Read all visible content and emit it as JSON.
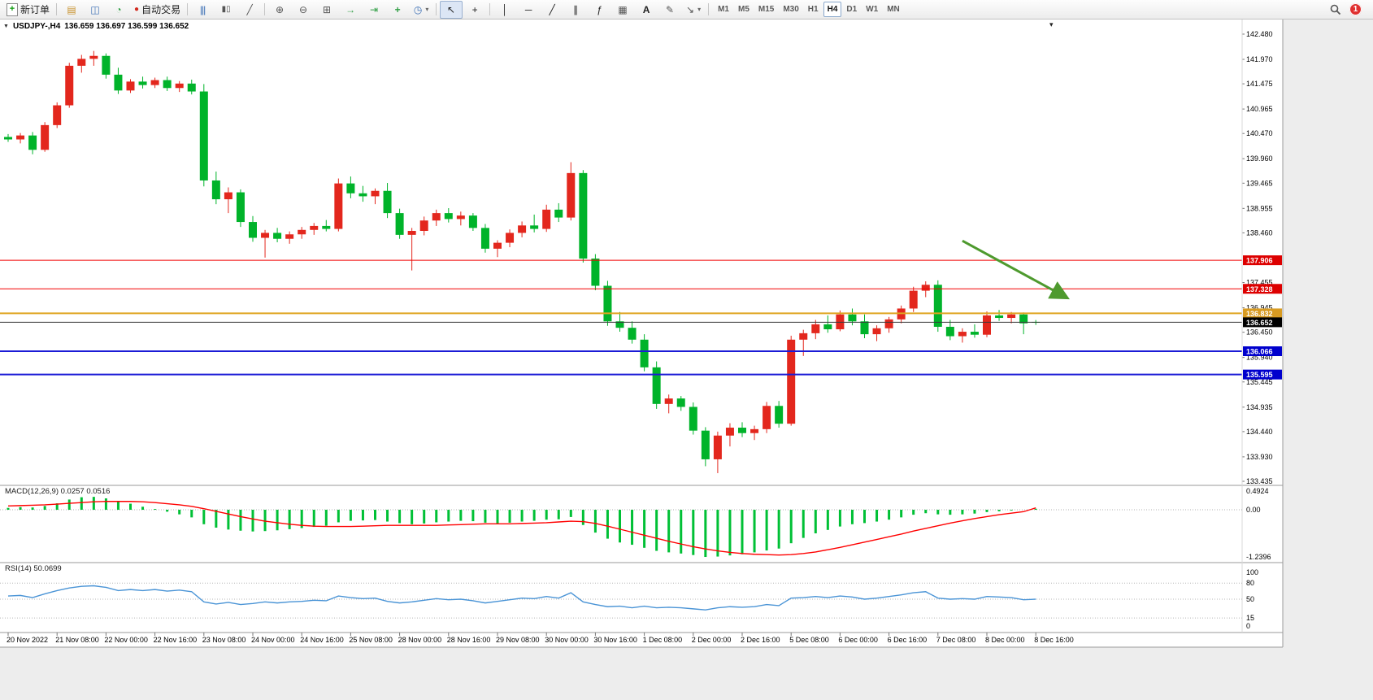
{
  "toolbar": {
    "new_order_label": "新订单",
    "autotrading_label": "自动交易",
    "timeframes": [
      "M1",
      "M5",
      "M15",
      "M30",
      "H1",
      "H4",
      "D1",
      "W1",
      "MN"
    ],
    "active_timeframe": "H4",
    "notification_count": "1"
  },
  "icons": {
    "quote_dropdown": "▼",
    "shift_marker": "▾",
    "new_order_plus": "+",
    "market_watch": "▤",
    "navigator": "◫",
    "toolbox": "◔",
    "autotrading_dot": "●",
    "bars_chart": "|||",
    "candles_chart": "▮▯",
    "line_chart": "╱",
    "zoom_in": "⊕",
    "zoom_out": "⊖",
    "tile_windows": "⊞",
    "auto_scroll": "→",
    "chart_shift": "⇥",
    "add_indicator": "+",
    "cycles": "◷",
    "dropdown": "▾",
    "cursor": "↖",
    "crosshair": "+",
    "vline": "│",
    "hline": "─",
    "trendline": "╱",
    "channel": "∥",
    "fibonacci": "ƒ",
    "shapes": "▦",
    "text_tool": "A",
    "label_tool": "✎",
    "arrows_tool": "↘"
  },
  "quote": {
    "symbol": "USDJPY-,H4",
    "ohlc": "136.659 136.697 136.599 136.652"
  },
  "panes": {
    "macd_label": "MACD(12,26,9) 0.0257 0.0516",
    "rsi_label": "RSI(14) 50.0699"
  },
  "colors": {
    "up": "#e3271d",
    "down": "#00b32a",
    "macd_hist": "#00c035",
    "macd_signal": "#ff0000",
    "rsi_line": "#4a94d6",
    "arrow": "#4e9a2e"
  },
  "chart_data": {
    "type": "candlestick",
    "title": "USDJPY-,H4",
    "timeframe": "H4",
    "ohlc_display": {
      "open": "136.659",
      "high": "136.697",
      "low": "136.599",
      "close": "136.652"
    },
    "time_labels": [
      "20 Nov 2022",
      "21 Nov 08:00",
      "22 Nov 00:00",
      "22 Nov 16:00",
      "23 Nov 08:00",
      "24 Nov 00:00",
      "24 Nov 16:00",
      "25 Nov 08:00",
      "28 Nov 00:00",
      "28 Nov 16:00",
      "29 Nov 08:00",
      "30 Nov 00:00",
      "30 Nov 16:00",
      "1 Dec 08:00",
      "2 Dec 00:00",
      "2 Dec 16:00",
      "5 Dec 08:00",
      "6 Dec 00:00",
      "6 Dec 16:00",
      "7 Dec 08:00",
      "8 Dec 00:00",
      "8 Dec 16:00"
    ],
    "main": {
      "ylim": [
        133.435,
        142.677
      ],
      "price_ticks": [
        "142.480",
        "141.970",
        "141.475",
        "140.965",
        "140.470",
        "139.960",
        "139.465",
        "138.955",
        "138.460",
        "137.455",
        "136.945",
        "136.450",
        "135.940",
        "135.445",
        "134.935",
        "134.440",
        "133.930",
        "133.435"
      ],
      "hlines": [
        {
          "price": 137.906,
          "label": "137.906",
          "line_color": "#f20000",
          "line_width": 1,
          "tag_color": "#dd0000"
        },
        {
          "price": 137.328,
          "label": "137.328",
          "line_color": "#f20000",
          "line_width": 1,
          "tag_color": "#dd0000"
        },
        {
          "price": 136.832,
          "label": "136.832",
          "line_color": "#dfa520",
          "line_width": 2,
          "tag_color": "#d89b22"
        },
        {
          "price": 136.652,
          "label": "136.652",
          "line_color": "#3a3a3a",
          "line_width": 1,
          "tag_color": "#000000"
        },
        {
          "price": 136.066,
          "label": "136.066",
          "line_color": "#1b1bd6",
          "line_width": 2,
          "tag_color": "#0000cd"
        },
        {
          "price": 135.595,
          "label": "135.595",
          "line_color": "#1b1bd6",
          "line_width": 2,
          "tag_color": "#0000cd"
        }
      ],
      "arrow": {
        "from": [
          78,
          138.3
        ],
        "to": [
          86.6,
          137.14
        ]
      },
      "candles": [
        [
          140.4,
          140.46,
          140.3,
          140.35
        ],
        [
          140.35,
          140.48,
          140.27,
          140.43
        ],
        [
          140.43,
          140.5,
          140.05,
          140.14
        ],
        [
          140.14,
          140.7,
          140.1,
          140.64
        ],
        [
          140.64,
          141.1,
          140.58,
          141.04
        ],
        [
          141.04,
          141.9,
          140.99,
          141.84
        ],
        [
          141.84,
          142.06,
          141.7,
          141.98
        ],
        [
          141.98,
          142.14,
          141.84,
          142.04
        ],
        [
          142.04,
          142.09,
          141.58,
          141.66
        ],
        [
          141.66,
          141.8,
          141.27,
          141.34
        ],
        [
          141.34,
          141.57,
          141.29,
          141.52
        ],
        [
          141.52,
          141.62,
          141.38,
          141.45
        ],
        [
          141.45,
          141.6,
          141.39,
          141.55
        ],
        [
          141.55,
          141.62,
          141.33,
          141.39
        ],
        [
          141.39,
          141.53,
          141.31,
          141.48
        ],
        [
          141.48,
          141.56,
          141.26,
          141.32
        ],
        [
          141.32,
          141.47,
          139.4,
          139.52
        ],
        [
          139.52,
          139.7,
          139.04,
          139.14
        ],
        [
          139.14,
          139.38,
          138.86,
          139.28
        ],
        [
          139.28,
          139.34,
          138.58,
          138.68
        ],
        [
          138.68,
          138.8,
          138.28,
          138.36
        ],
        [
          138.36,
          138.52,
          137.96,
          138.46
        ],
        [
          138.46,
          138.56,
          138.27,
          138.34
        ],
        [
          138.34,
          138.49,
          138.24,
          138.43
        ],
        [
          138.43,
          138.58,
          138.34,
          138.52
        ],
        [
          138.52,
          138.66,
          138.42,
          138.6
        ],
        [
          138.6,
          138.72,
          138.49,
          138.54
        ],
        [
          138.54,
          139.56,
          138.49,
          139.46
        ],
        [
          139.46,
          139.6,
          139.16,
          139.26
        ],
        [
          139.26,
          139.41,
          139.09,
          139.2
        ],
        [
          139.2,
          139.36,
          139.04,
          139.31
        ],
        [
          139.31,
          139.47,
          138.76,
          138.86
        ],
        [
          138.86,
          138.95,
          138.34,
          138.42
        ],
        [
          138.42,
          138.56,
          137.7,
          138.5
        ],
        [
          138.5,
          138.79,
          138.41,
          138.71
        ],
        [
          138.71,
          138.93,
          138.6,
          138.86
        ],
        [
          138.86,
          138.96,
          138.67,
          138.74
        ],
        [
          138.74,
          138.89,
          138.61,
          138.81
        ],
        [
          138.81,
          138.86,
          138.5,
          138.56
        ],
        [
          138.56,
          138.64,
          138.06,
          138.14
        ],
        [
          138.14,
          138.31,
          137.97,
          138.26
        ],
        [
          138.26,
          138.53,
          138.17,
          138.46
        ],
        [
          138.46,
          138.69,
          138.37,
          138.61
        ],
        [
          138.61,
          138.83,
          138.47,
          138.54
        ],
        [
          138.54,
          139.03,
          138.48,
          138.93
        ],
        [
          138.93,
          139.06,
          138.68,
          138.77
        ],
        [
          138.77,
          139.89,
          138.71,
          139.67
        ],
        [
          139.67,
          139.73,
          137.86,
          137.94
        ],
        [
          137.94,
          138.03,
          137.3,
          137.39
        ],
        [
          137.39,
          137.49,
          136.58,
          136.67
        ],
        [
          136.67,
          136.86,
          136.46,
          136.54
        ],
        [
          136.54,
          136.67,
          136.22,
          136.3
        ],
        [
          136.3,
          136.41,
          135.66,
          135.74
        ],
        [
          135.74,
          135.86,
          134.9,
          135.0
        ],
        [
          135.0,
          135.19,
          134.81,
          135.11
        ],
        [
          135.11,
          135.16,
          134.86,
          134.94
        ],
        [
          134.94,
          135.03,
          134.38,
          134.46
        ],
        [
          134.46,
          134.53,
          133.74,
          133.88
        ],
        [
          133.88,
          134.44,
          133.6,
          134.36
        ],
        [
          134.36,
          134.61,
          134.14,
          134.52
        ],
        [
          134.52,
          134.63,
          134.33,
          134.41
        ],
        [
          134.41,
          134.56,
          134.27,
          134.49
        ],
        [
          134.49,
          135.04,
          134.41,
          134.96
        ],
        [
          134.96,
          135.06,
          134.52,
          134.6
        ],
        [
          134.6,
          136.38,
          134.56,
          136.3
        ],
        [
          136.3,
          136.5,
          135.97,
          136.43
        ],
        [
          136.43,
          136.7,
          136.31,
          136.61
        ],
        [
          136.61,
          136.79,
          136.44,
          136.51
        ],
        [
          136.51,
          136.89,
          136.47,
          136.81
        ],
        [
          136.81,
          136.93,
          136.59,
          136.67
        ],
        [
          136.67,
          136.81,
          136.33,
          136.41
        ],
        [
          136.41,
          136.59,
          136.27,
          136.53
        ],
        [
          136.53,
          136.76,
          136.44,
          136.71
        ],
        [
          136.71,
          136.99,
          136.63,
          136.93
        ],
        [
          136.93,
          137.37,
          136.86,
          137.29
        ],
        [
          137.29,
          137.48,
          137.16,
          137.41
        ],
        [
          137.41,
          137.5,
          136.46,
          136.56
        ],
        [
          136.56,
          136.7,
          136.29,
          136.37
        ],
        [
          136.37,
          136.53,
          136.24,
          136.46
        ],
        [
          136.46,
          136.61,
          136.34,
          136.4
        ],
        [
          136.4,
          136.87,
          136.35,
          136.79
        ],
        [
          136.79,
          136.9,
          136.68,
          136.74
        ],
        [
          136.74,
          136.86,
          136.63,
          136.81
        ],
        [
          136.81,
          136.85,
          136.41,
          136.63
        ],
        [
          136.659,
          136.697,
          136.599,
          136.652
        ]
      ]
    },
    "macd": {
      "name": "MACD(12,26,9)",
      "current_main": 0.0257,
      "current_signal": 0.0516,
      "ylim": [
        -1.3464,
        0.5779
      ],
      "axis_ticks": [
        {
          "value": 0.4924,
          "label": "0.4924"
        },
        {
          "value": 0.0,
          "label": "0.00"
        },
        {
          "value": -1.2396,
          "label": "-1.2396"
        }
      ],
      "histogram": [
        0.05,
        0.07,
        0.06,
        0.1,
        0.17,
        0.27,
        0.33,
        0.34,
        0.3,
        0.22,
        0.16,
        0.08,
        0.02,
        -0.05,
        -0.12,
        -0.2,
        -0.38,
        -0.47,
        -0.52,
        -0.55,
        -0.57,
        -0.56,
        -0.54,
        -0.51,
        -0.48,
        -0.45,
        -0.42,
        -0.33,
        -0.29,
        -0.28,
        -0.27,
        -0.31,
        -0.35,
        -0.38,
        -0.36,
        -0.33,
        -0.31,
        -0.29,
        -0.3,
        -0.34,
        -0.36,
        -0.34,
        -0.31,
        -0.29,
        -0.26,
        -0.25,
        -0.19,
        -0.4,
        -0.6,
        -0.76,
        -0.86,
        -0.92,
        -1.0,
        -1.08,
        -1.12,
        -1.15,
        -1.19,
        -1.24,
        -1.23,
        -1.2,
        -1.17,
        -1.12,
        -1.07,
        -1.02,
        -0.88,
        -0.74,
        -0.62,
        -0.53,
        -0.44,
        -0.38,
        -0.35,
        -0.31,
        -0.26,
        -0.2,
        -0.13,
        -0.09,
        -0.12,
        -0.13,
        -0.12,
        -0.1,
        -0.06,
        -0.04,
        -0.02,
        0.0,
        0.026
      ],
      "signal": [
        0.1,
        0.11,
        0.12,
        0.13,
        0.15,
        0.17,
        0.19,
        0.21,
        0.22,
        0.22,
        0.22,
        0.21,
        0.19,
        0.16,
        0.13,
        0.09,
        0.03,
        -0.04,
        -0.11,
        -0.18,
        -0.24,
        -0.3,
        -0.34,
        -0.38,
        -0.41,
        -0.43,
        -0.44,
        -0.44,
        -0.44,
        -0.43,
        -0.42,
        -0.41,
        -0.41,
        -0.41,
        -0.41,
        -0.41,
        -0.4,
        -0.39,
        -0.38,
        -0.37,
        -0.37,
        -0.37,
        -0.36,
        -0.35,
        -0.34,
        -0.32,
        -0.3,
        -0.31,
        -0.36,
        -0.43,
        -0.51,
        -0.59,
        -0.67,
        -0.75,
        -0.83,
        -0.9,
        -0.97,
        -1.03,
        -1.08,
        -1.12,
        -1.15,
        -1.17,
        -1.18,
        -1.19,
        -1.18,
        -1.15,
        -1.11,
        -1.05,
        -0.99,
        -0.92,
        -0.85,
        -0.78,
        -0.71,
        -0.64,
        -0.56,
        -0.49,
        -0.42,
        -0.35,
        -0.29,
        -0.23,
        -0.18,
        -0.13,
        -0.09,
        -0.05,
        0.05
      ]
    },
    "rsi": {
      "name": "RSI(14)",
      "current": 50.0699,
      "ylim": [
        -9.09,
        112.12
      ],
      "levels": [
        80,
        50,
        15
      ],
      "axis_ticks": [
        {
          "value": 100,
          "label": "100"
        },
        {
          "value": 80,
          "label": "80"
        },
        {
          "value": 50,
          "label": "50"
        },
        {
          "value": 15,
          "label": "15"
        },
        {
          "value": 0,
          "label": "0"
        }
      ],
      "values": [
        56,
        57,
        53,
        60,
        66,
        71,
        74,
        75,
        72,
        66,
        68,
        66,
        68,
        65,
        67,
        64,
        45,
        41,
        44,
        40,
        42,
        45,
        43,
        45,
        46,
        48,
        47,
        56,
        53,
        51,
        52,
        46,
        43,
        45,
        48,
        51,
        49,
        50,
        47,
        43,
        46,
        49,
        52,
        51,
        55,
        52,
        62,
        45,
        40,
        36,
        37,
        34,
        37,
        34,
        35,
        34,
        32,
        30,
        34,
        36,
        35,
        36,
        40,
        38,
        52,
        53,
        55,
        53,
        56,
        54,
        50,
        52,
        55,
        58,
        62,
        64,
        52,
        50,
        51,
        50,
        55,
        54,
        53,
        49,
        50
      ]
    }
  }
}
